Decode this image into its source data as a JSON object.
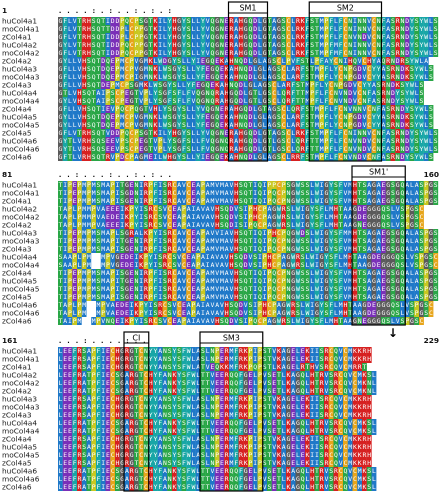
{
  "species": [
    "huCol4a1",
    "moCol4a1",
    "zCol4a1",
    "huCol4a2",
    "moCol4a2",
    "zCol4a2",
    "huCol4a3",
    "moCol4a3",
    "zCol4a3",
    "huCol4a4",
    "moCol4a4",
    "zCol4a4",
    "huCol4a5",
    "moCol4a5",
    "zCol4a5",
    "huCol4a6",
    "moCol4a6",
    "zCol4a6"
  ],
  "blocks": [
    {
      "start_label": "1",
      "end_label": "",
      "consensus": ".   .  .    .   :   .    :   .  .     :  .   :    .    :",
      "sequences": [
        "GFLVTRHSQTIDDPQCPSGTKILYHGYSLLYVQGNERAHGQDLGTAGSCLRKFSTMPFLFCNINNVCNFASRNDYSYWLS",
        "GFLVTRHSQTTDDPLCPPGTKILYHGYSLLYVQGNERAHGQDLGTAGSCLRKFSTMPFLFCNINNVCNFASRNDYSYWLS",
        "GFLVTRHSQTIDDPLCPPGTKILYHGYSLLYVQGNERAHGQDLGTAGSCLRKFSTMPFLFCNVNDVCNFASRNDYSYWLS",
        "GYLVTRHSQTIDDPQCPPGTKILYHGYSLLYVQGNERAHGQDLGTAGSCLRKFSTMPFMFCNINNVCNFASRNDYSYWLS",
        "GFLVTRHSQTIDDPQCPPGTKILYHGYSLLYVQGNERAHGQDLGTAGSCLRKFSTMPFMFCNINNVCNFASRNDYSYWLS",
        "GYLLVHSQTDQEPMCPVGMKLWDGYSLLYIEGQEKAHNQDLGLAGSCLPVFSTLPFAYCNIHQVCHYAQRNDRSYWLA",
        "GFLLVHSQTDQEPMCPVGMNKLWSGYSLLYFEGQEKAHNQDLGLAGSCLARFSTMPFLYCNPGDVCYYASRNDKSYWLS",
        "GFLLVHSQTDQEPMCPIGMNKLWSGYSLLYFEGQEKAHNQDLGLAGSCLARFSTMPFLYCNPGDVCYYASRNDKSYWLS",
        "GFLLVHSQTDEPMCPSGMKLWSGYSLLYFEGQEKAHNQDLGLAGSCLARFSTMPFLYCNPGDVCYYASRNDKSYWLS",
        "GTLVHSQTAIPSCPEGTVPLYSGFSFLFVQGNQRAHGQDLGTLGSCLQRFTTMPFLFCNVNDVCNFASRNDYSYWLS",
        "GYLVHSQTAIPSCPEGTVPLYSGFSFLFVQGNQRAHGQDLGTLGSCLQRFTTMPFLFCNVNDVCNFASRNDYSYWLS",
        "GFLLVHSQTIEVPQCPQGTVHLYSGYSLLYVQGNERAHGQDLGTAGSCLQRFSTMPFLFCNVNNVCNFASRNDYSYWLS",
        "GYLLVHSQTDQEPMCPVGMNKLWSGYSLLYFEGQEKAHNQDLGLAGSCLARFSTMPFLYCNPGDVCYYASRNDKSYWLS",
        "GYLLVHSQTDQEPMCPVGMNKLWSGYSLLYFEGQEKAHNQDLGLAGSCLARFSTMPFLYCNPGDVCYYASRNDKSYWLS",
        "GFLVTRHSQTVDDPQCPSGTKILYHGYSLLYVQGNERAHGQDLGTAGSCLRKFSTMPFLFCNINNVCNFASRNDYSYWLS",
        "GYTLVRHSQSEEVPSCPEGTVPLYSGFSLLFVQGNQRAHGQDLGTLGSCLQRFTTMPFLFCNVNDVCNFASRNDYSYWLS",
        "GYTLVRHSQSEEVPSCPEGTVPLYSGFSLLFVQGNQRAHGQDLGTLGSCLQRFTTMPFLFCNVNDVCNFASRNDYSYWLS",
        "GFTLVRHSQTRVPDCPAGMEILWHGYSLLYIEGQEKAHNQDLGLAGSCLRRFSTMPFLFCNVNDVCNFASRNDYSYWLS"
      ]
    },
    {
      "start_label": "81",
      "end_label": "160",
      "consensus": ".   .  :    .   .   .   :   .   .    :   .  :    .    .",
      "sequences": [
        "TIPEPMPMSMAPITGENIRPFISRCAVCEAPAMVMAVHSQTIQIPPCPSGWSSLWIGYSFVMHTSAGAEGSGQALASPGSC",
        "TIPEPMPMSMAPISGDNIRPFISRCAVCEAPAMVMAVHSQTIQIPQCPNGWSSLWIGYSFVMHTSAGAEGSGQALASPGSC",
        "TIPEPMPMSMAPISGENIRPFISRCAVCEAPAMVMAVHSQTIQIPQCPNGWSSLWIGYSFVMHTSAGAEGSGQALASPGSC",
        "TAPLPMMPVAEEEIKPYISRCSVCEAPAIAVAVHSQDVSIPHCPAGWRSLWIGYSFLMHTAAGDEGGGQSLVSPGSC",
        "TAPLPMMPVAEDEIKPYISRCSVCEAPAIAVAVHSQDVSIPHCPAGWRSLWIGYSFLMHTAAGDEGGGQSLVSPGSC",
        "TAPLPMMPVAEEEIKPYISRCSVCEAPAIAVAVHSQDISIPQCPAGWRSLWIGYSFLMHTAAGNEGGGQSLVSPGSC",
        "TIPEPMPMSMAPLSGRALKPYISRCAVCEAPAVVIAVHSQTIQIPHCPQGWDSLWIGYSFMMHTSAGAEGSGQALASPGSC",
        "TIPEPMPMSMAPITGENIRPFISRCAVCEAPAMVMAVHSQTIQIPQCPNGWSSLWIGYSFVMHTSAGAEGSGQALASPGSC",
        "TIPEPMPMSMAPISGENIRPFISRCAVCEAPAMVMAVHSQTIQIPQCPNGWSSLWIGYSFVMHTSAGAEGSGQALASPGSC",
        "SAAPLPM--MPVGEDEIKPYISRCSVCEAPAIAVAVHSQDVSIPHCPAGWRSLWIGYSFLMHTAAGDEGGGQSLVSPGSC",
        "SAAPLPM--MPVGEDEIKPYISRCSVCEAPAIAVAVHSQDVSIPHCPAGWRSLWIGYSFLMHTAAGDEGGGQSLVSPGSC",
        "TIPEPMPMSMAPISGENIRPFISRCAVCEAPAMVMAVHSQTIQIPQCPNGWSSLWIGYSFVMHTSAGAEGSGQALASPGSC",
        "TIPEPMPMSMAPITGENIRPFISRCAVCEAPAMVMAVHSQTIQIPQCPNGWSSLWIGYSFVMHTSAGAEGSGQALASPGSC",
        "TIPEPMPMSMAPISGENIRPFISRCAVCEAPAMVMAVHSQTIQIPQCPNGWSSLWIGYSFVMHTSAGAEGSGQALASPGSC",
        "TIPEPMPMSMAPISGENIRPFISRCAVCEAPAMVMAVHSQTIQIPQCPNGWSSLWIGYSFVMHTSAGAEGSGQALASPGSC",
        "TAPLPM--MPVAEDEIKPYISRCSVCEAPAIAVAVHSQDVSIPHCPAGWRSLWIGYSFLMHTAAGDEGGGQSLVSPGSC",
        "TAPLPM--MPVAEDEIKPYISRCSVCEAPAIAVAVHSQDVSIPHCPAGWRSLWIGYSFLMHTAAGDEGGGQSLVSPGSC",
        "TAIPM--MPVNQEIKPYISRCSVCEAPAIAVAVHSQDVSIPQCPAGWRSLWIGYSFLMHTAAGNEGGGQSLVSPGSC"
      ]
    },
    {
      "start_label": "161",
      "end_label": "229",
      "consensus": ".   .  .    :   .   .   .   .    :    .   .",
      "sequences": [
        "LEEFRSAPFIECHGRGTCNYYANSYSFWLASLNPERMFRKPIPSTVKAGELEKIISRCQVCMKKRH",
        "LEEFRSAPFIECHGRGTCNYYANSYSFWLASLNPERMFRKPIPSTVKAGELEKIISRCQVCMKKRH",
        "LEEFRSAPFIECHGRGTCNYYANSYSFWLATVEQKKMFRKPQPSTLKAGELRTHVSRCQVCMRRT",
        "LEEFRATPFIECSGARGTCHYFANKYSFWLTTVEERQQFGELPVSETLKAGQLHTRVSRCQVCMKSL",
        "LEEFRATPFIECSGARGTCHYFANKYSFWLTTVEERQQFGELPVSETLKAGQLHTRVSRCQVCMKNL",
        "LEEFRATPFIECSGARGTCHYFANKYSFWLTTVEERQQFGELPVSETLKAGQLHTRVSRCQVCMKNL",
        "LEEFRSAPFIECHGRGTCNYYANSYSFWLASLNPERMFRKPIPSTVKAGELEKIISRCQVCMKKRH",
        "LEEFRSAPFIECHGRGTCNYYANSYSFWLASLNPERMFRKPIPSTVKAGELEKIISRCQVCMKKRH",
        "LEEFRSAPFIECHGRGTCNYYANSYSFWLASLNPERMFRKPIPSTVKAGELEKIISRCQVCMKKRH",
        "LEEFRATPFIECSGARGTCHYFANKYSFWLTTVEERQQFGELPVSETLKAGQLHTRVSRCQVCMKSL",
        "LEEFRATPFIECSGARGTCHYFANKYSFWLTTVEERQQFGELPVSETLKAGQLHTRVSRCQVCMKSL",
        "LEEFRSAPFIECHGRGTCNYYANSYSFWLASLNPERMFRKPIPSTVKAGELEKIISRCQVCMKKRH",
        "LEEFRSAPFIECHGRGTCNYYANSYSFWLASLNPERMFRKPIPSTVKAGELEKIISRCQVCMKKRH",
        "LEEFRSAPFIECHGRGTCNYYANSYSFWLASLNPERMFRKPIPSTVKAGELEKIISRCQVCMKKRH",
        "LEEFRSAPFIECHGRGTCNYYANSYSFWLASLNPERMFRKPIPSTVKAGELEKIISRCQVCMKKRH",
        "LEEFRATPFIECSGARGTCHYFANKYSFWLTTVEERQQFGELPVSETLKAGQLHTRVSRCQVCMKSL",
        "LEEFRATPFIECSGARGTCHYFANKYSFWLTTVEERQQFGELPVSETLKAGQLHTRVSRCQVCMKSL",
        "LEEFRATPFIECSGARGTCHYFANKYSFWLTTVEERQQFGELPVSETLKAGQLHTRVSRCQVCMKSL"
      ]
    }
  ],
  "motifs": [
    {
      "label": "SM1",
      "block": 0,
      "from": 36,
      "to": 43
    },
    {
      "label": "SM2",
      "block": 0,
      "from": 53,
      "to": 67
    },
    {
      "label": "SM1'",
      "block": 1,
      "from": 62,
      "to": 72
    },
    {
      "label": "CI",
      "block": 2,
      "from": 14,
      "to": 18
    },
    {
      "label": "SM3",
      "block": 2,
      "from": 30,
      "to": 42
    }
  ],
  "arrow_marker": {
    "block": 1,
    "col": 70,
    "symbol": "↓"
  },
  "colors": {
    "hydrophobic": "#1f78c8",
    "polar": "#29a646",
    "positive": "#d62020",
    "negative": "#7a2fb8",
    "cysteine": "#e7a51b",
    "glycine": "#5a5a5a",
    "aromatic": "#18a6a6",
    "proline": "#c8c820",
    "gap": "#ffffff"
  }
}
